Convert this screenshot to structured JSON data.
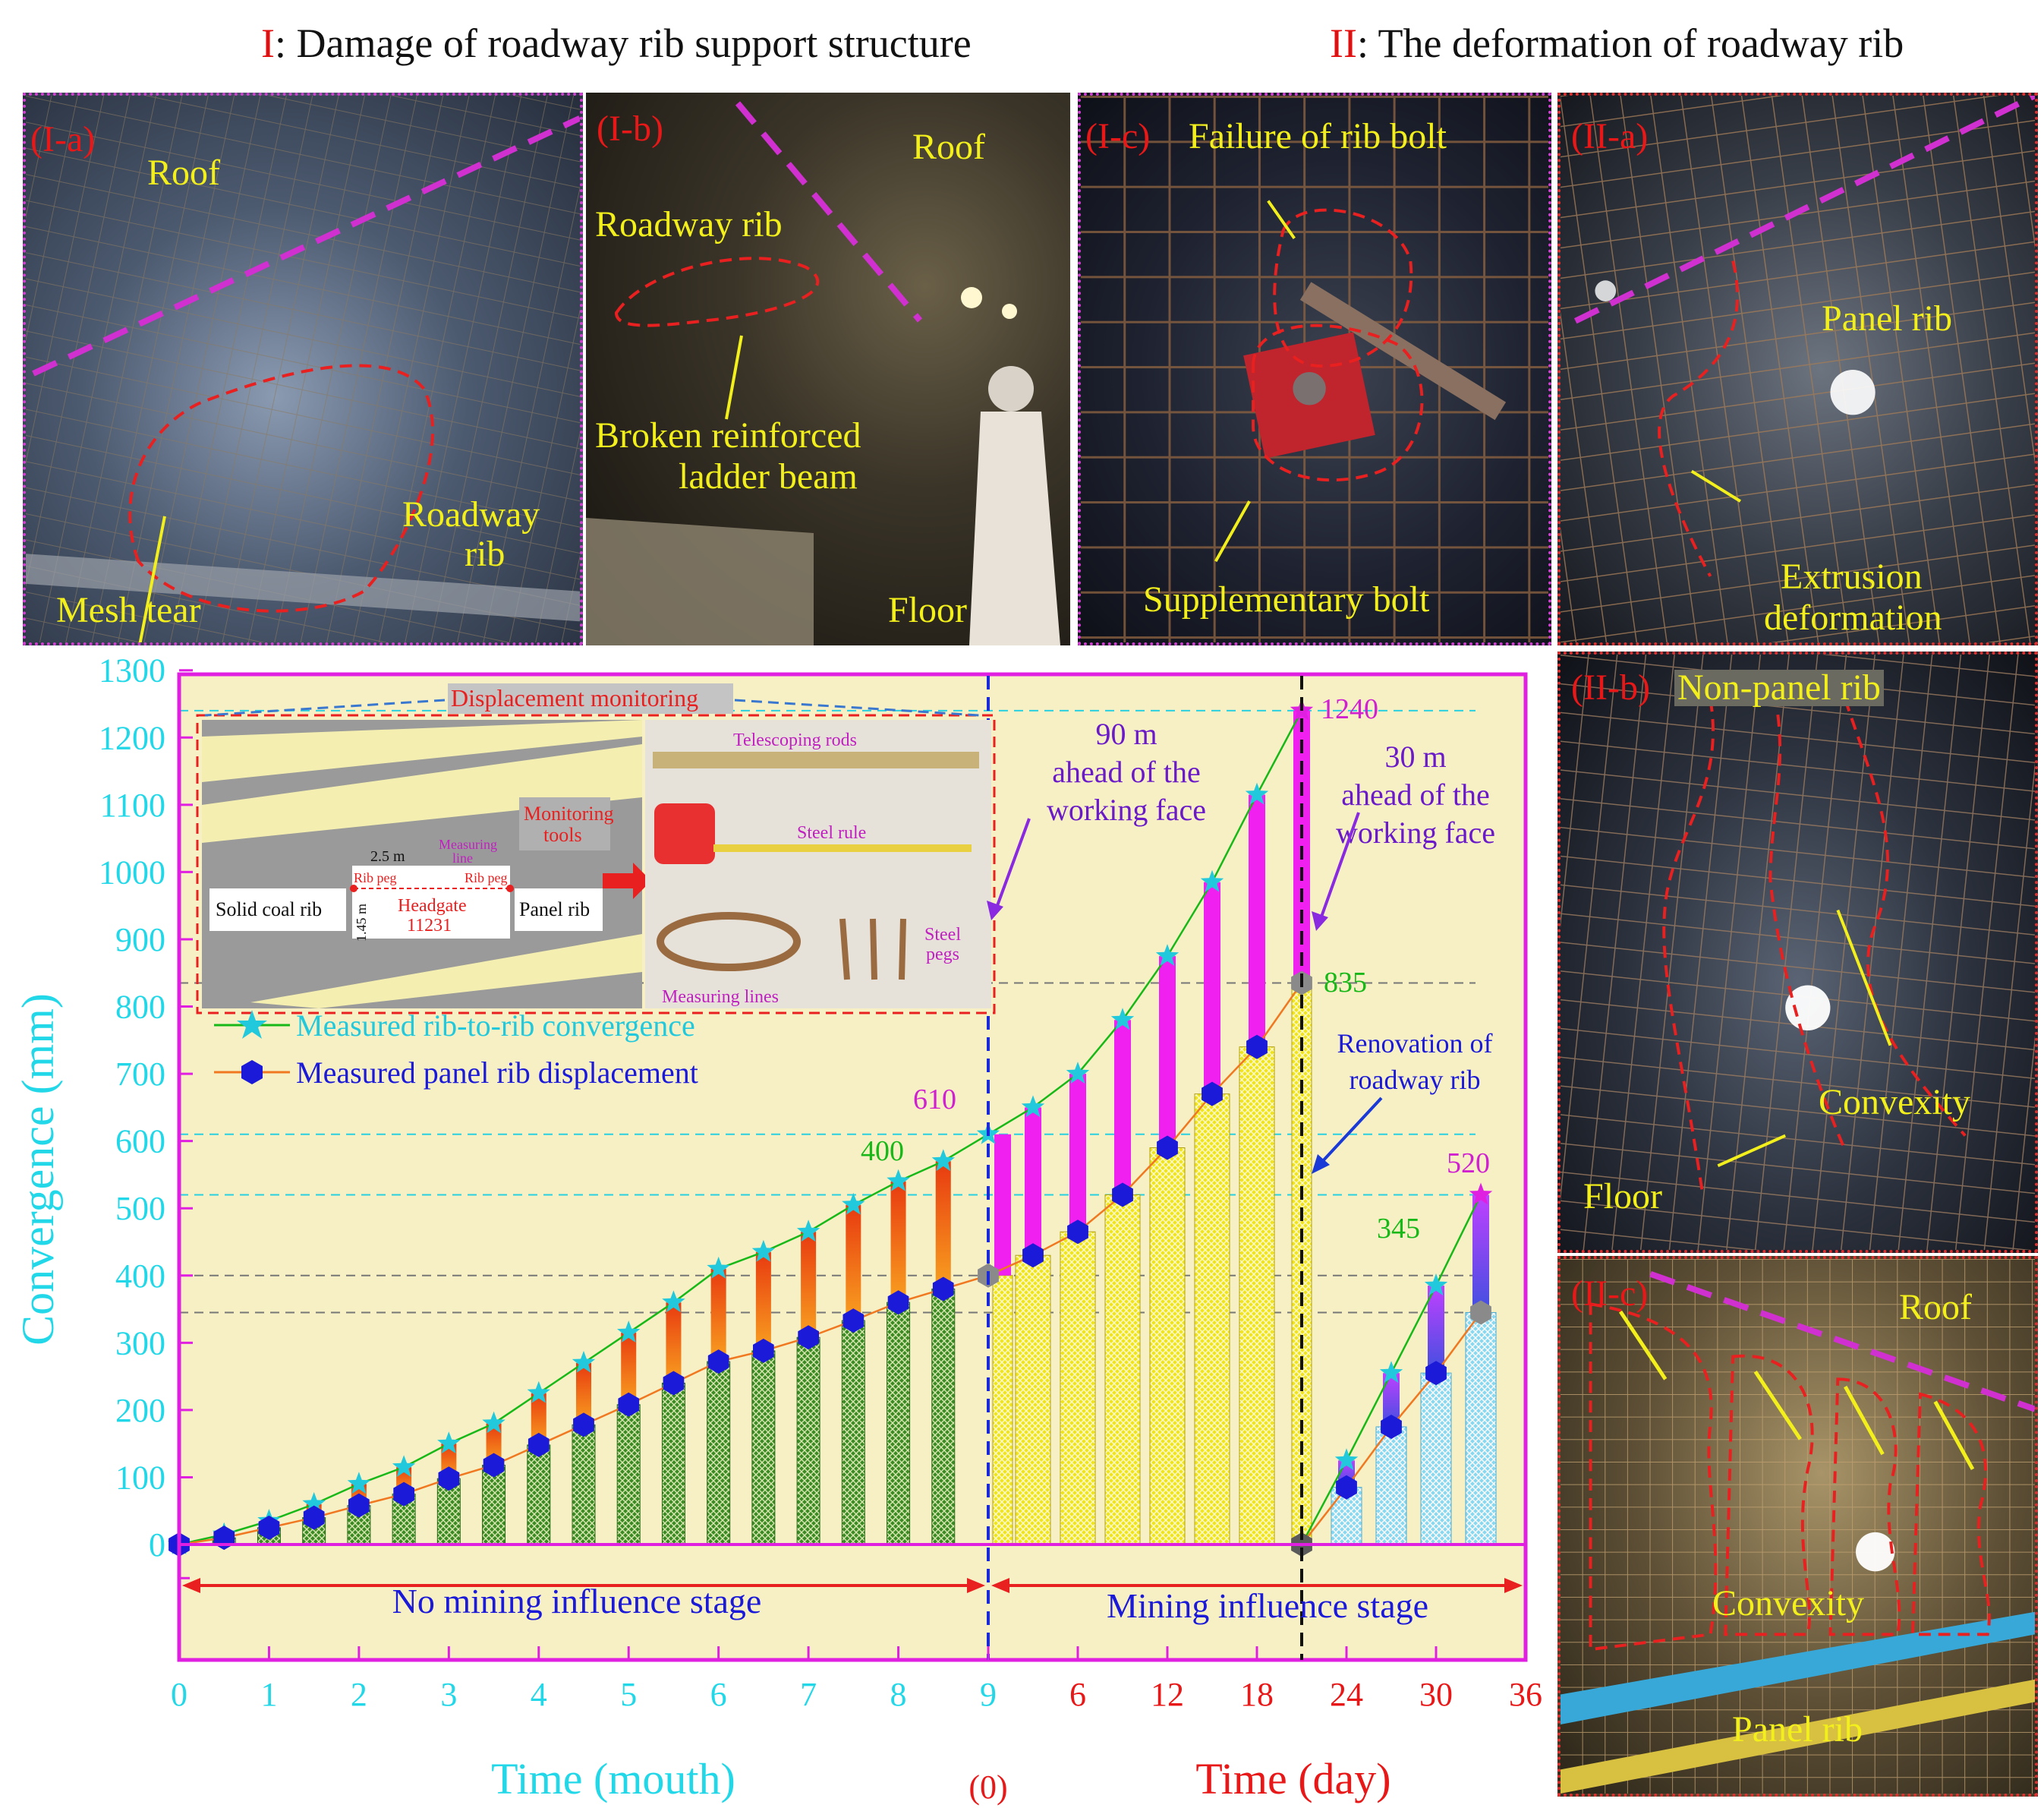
{
  "header": {
    "left_num": "I",
    "left_text": ": Damage of roadway rib support structure",
    "right_num": "II",
    "right_text": ": The deformation of roadway rib"
  },
  "panels": {
    "Ia": {
      "tag": "(I-a)",
      "roof": "Roof",
      "rib1": "Roadway",
      "rib2": "rib",
      "mesh": "Mesh tear"
    },
    "Ib": {
      "tag": "(I-b)",
      "roof": "Roof",
      "rib": "Roadway rib",
      "broken1": "Broken reinforced",
      "broken2": "ladder beam",
      "floor": "Floor"
    },
    "Ic": {
      "tag": "(I-c)",
      "failure": "Failure of rib bolt",
      "supp": "Supplementary bolt"
    },
    "IIa": {
      "tag": "(II-a)",
      "panel": "Panel rib",
      "ext1": "Extrusion",
      "ext2": "deformation"
    },
    "IIb": {
      "tag": "(II-b)",
      "nonpanel": "Non-panel rib",
      "convexity": "Convexity",
      "floor": "Floor"
    },
    "IIc": {
      "tag": "(II-c)",
      "roof": "Roof",
      "convexity": "Convexity",
      "panel": "Panel rib"
    }
  },
  "inset": {
    "title": "Displacement monitoring",
    "solid": "Solid coal rib",
    "panel": "Panel rib",
    "headgate1": "Headgate",
    "headgate2": "11231",
    "dist1": "2.5 m",
    "dist2": "1.45 m",
    "ribpeg": "Rib peg",
    "measline1": "Measuring",
    "measline2": "line",
    "tools1": "Monitoring",
    "tools2": "tools",
    "rods": "Telescoping rods",
    "rule": "Steel rule",
    "lines": "Measuring lines",
    "pegs1": "Steel",
    "pegs2": "pegs"
  },
  "chart_data": {
    "type": "bar",
    "ylabel": "Convergence (mm)",
    "xlabel_left": "Time (mouth)",
    "xlabel_right": "Time (day)",
    "ylim": [
      -100,
      1300
    ],
    "yticks": [
      0,
      100,
      200,
      300,
      400,
      500,
      600,
      700,
      800,
      900,
      1000,
      1100,
      1200,
      1300
    ],
    "xticks_month": [
      "0",
      "1",
      "2",
      "3",
      "4",
      "5",
      "6",
      "7",
      "8",
      "9"
    ],
    "xticks_day": [
      "6",
      "12",
      "18",
      "24",
      "30",
      "36"
    ],
    "xtick_zero": "(0)",
    "series": [
      {
        "name": "Measured rib-to-rib convergence",
        "month_x": [
          0,
          0.5,
          1,
          1.5,
          2,
          2.5,
          3,
          3.5,
          4,
          4.5,
          5,
          5.5,
          6,
          6.5,
          7,
          7.5,
          8,
          8.5,
          9
        ],
        "month_y": [
          0,
          15,
          35,
          60,
          90,
          115,
          150,
          180,
          225,
          270,
          315,
          360,
          410,
          435,
          465,
          505,
          540,
          570,
          610
        ],
        "day_x": [
          0,
          3,
          6,
          9,
          12,
          15,
          18,
          21,
          21,
          24,
          27,
          30,
          33
        ],
        "day_y": [
          610,
          650,
          700,
          780,
          875,
          985,
          1115,
          1240,
          0,
          125,
          255,
          385,
          520
        ]
      },
      {
        "name": "Measured  panel rib displacement",
        "month_x": [
          0,
          0.5,
          1,
          1.5,
          2,
          2.5,
          3,
          3.5,
          4,
          4.5,
          5,
          5.5,
          6,
          6.5,
          7,
          7.5,
          8,
          8.5,
          9
        ],
        "month_y": [
          0,
          10,
          25,
          40,
          58,
          75,
          98,
          118,
          148,
          178,
          208,
          240,
          272,
          288,
          308,
          333,
          360,
          380,
          400
        ],
        "day_x": [
          0,
          3,
          6,
          9,
          12,
          15,
          18,
          21,
          21,
          24,
          27,
          30,
          33
        ],
        "day_y": [
          400,
          430,
          465,
          520,
          590,
          670,
          740,
          835,
          0,
          85,
          175,
          255,
          345
        ]
      }
    ],
    "annotations": {
      "v610": "610",
      "v400": "400",
      "v1240": "1240",
      "v835": "835",
      "v520": "520",
      "v345": "345",
      "ahead90_1": "90 m",
      "ahead90_2": "ahead of the",
      "ahead90_3": "working face",
      "ahead30_1": "30 m",
      "ahead30_2": "ahead of the",
      "ahead30_3": "working face",
      "reno1": "Renovation of",
      "reno2": "roadway rib",
      "stage1": "No mining influence stage",
      "stage2": "Mining influence stage"
    },
    "colors": {
      "convergence": "#22c9dc",
      "displacement": "#1a1ad8",
      "green_line": "#18b818",
      "orange_line": "#f07820",
      "bg": "#f7f0c4",
      "frame": "#e020e0",
      "axis_left": "#22d8e8",
      "axis_right": "#e81818"
    }
  }
}
